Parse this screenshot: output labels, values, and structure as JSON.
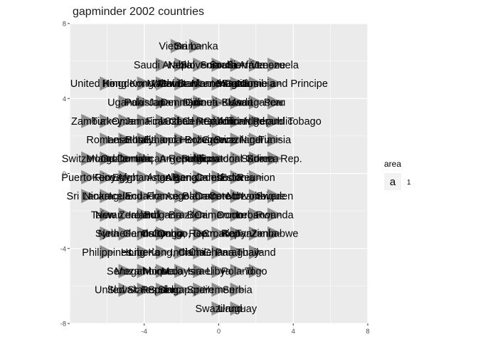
{
  "chart_data": {
    "type": "scatter",
    "title": "gapminder 2002 countries",
    "xlabel": "",
    "ylabel": "",
    "xlim": [
      -8,
      8
    ],
    "ylim": [
      -8,
      8
    ],
    "x_ticks": [
      -4,
      0,
      4,
      8
    ],
    "y_ticks": [
      8,
      4,
      0,
      -4,
      -8
    ],
    "grid": true,
    "marker": "triangle-right",
    "marker_color": "#7f7f7f",
    "panel_color": "#ebebeb",
    "legend": {
      "title": "area",
      "key_text": "a",
      "labels": [
        "1"
      ],
      "position": "right"
    },
    "points": [
      {
        "x": -2.2,
        "y": 6.8,
        "label": "Vietnam"
      },
      {
        "x": -1.2,
        "y": 6.8,
        "label": "Sri Lanka"
      },
      {
        "x": -3.0,
        "y": 5.8,
        "label": "Saudi Arabia"
      },
      {
        "x": -2.0,
        "y": 5.8,
        "label": "Nepal"
      },
      {
        "x": -1.0,
        "y": 5.8,
        "label": "Slovenia"
      },
      {
        "x": 0.0,
        "y": 5.8,
        "label": "Somalia"
      },
      {
        "x": 1.0,
        "y": 5.8,
        "label": "South Africa"
      },
      {
        "x": 2.0,
        "y": 5.8,
        "label": "Sierra Leone"
      },
      {
        "x": 3.0,
        "y": 5.8,
        "label": "Venezuela"
      },
      {
        "x": -6.0,
        "y": 4.8,
        "label": "United Kingdom"
      },
      {
        "x": -4.0,
        "y": 4.8,
        "label": "Hong Kong, China"
      },
      {
        "x": -3.0,
        "y": 4.8,
        "label": "Malawi"
      },
      {
        "x": -2.0,
        "y": 4.8,
        "label": "Mauritania"
      },
      {
        "x": -1.0,
        "y": 4.8,
        "label": "West Bank and Gaza"
      },
      {
        "x": 0.0,
        "y": 4.8,
        "label": "Montenegro"
      },
      {
        "x": 1.0,
        "y": 4.8,
        "label": "Mauritius"
      },
      {
        "x": 2.0,
        "y": 4.8,
        "label": "Namibia"
      },
      {
        "x": 3.0,
        "y": 4.8,
        "label": "Sao Tome and Principe"
      },
      {
        "x": -5.0,
        "y": 3.8,
        "label": "Uganda"
      },
      {
        "x": -4.0,
        "y": 3.8,
        "label": "Pakistan"
      },
      {
        "x": -3.0,
        "y": 3.8,
        "label": "Japan"
      },
      {
        "x": -2.0,
        "y": 3.8,
        "label": "Denmark"
      },
      {
        "x": -1.0,
        "y": 3.8,
        "label": "Djibouti"
      },
      {
        "x": 0.0,
        "y": 3.8,
        "label": "Guinea-Bissau"
      },
      {
        "x": 1.0,
        "y": 3.8,
        "label": "Kuwait"
      },
      {
        "x": 2.0,
        "y": 3.8,
        "label": "Madagascar"
      },
      {
        "x": 3.0,
        "y": 3.8,
        "label": "Peru"
      },
      {
        "x": -7.0,
        "y": 2.8,
        "label": "Zambia"
      },
      {
        "x": -6.0,
        "y": 2.8,
        "label": "Turkey"
      },
      {
        "x": -5.0,
        "y": 2.8,
        "label": "Oman"
      },
      {
        "x": -4.0,
        "y": 2.8,
        "label": "Jamaica"
      },
      {
        "x": -3.0,
        "y": 2.8,
        "label": "Finland"
      },
      {
        "x": -2.0,
        "y": 2.8,
        "label": "Chad"
      },
      {
        "x": -1.0,
        "y": 2.8,
        "label": "Czech Republic"
      },
      {
        "x": 0.0,
        "y": 2.8,
        "label": "Gabon"
      },
      {
        "x": 1.0,
        "y": 2.8,
        "label": "Central African Republic"
      },
      {
        "x": 2.0,
        "y": 2.8,
        "label": "Niger"
      },
      {
        "x": 3.0,
        "y": 2.8,
        "label": "Trinidad and Tobago"
      },
      {
        "x": -6.0,
        "y": 1.8,
        "label": "Romania"
      },
      {
        "x": -5.0,
        "y": 1.8,
        "label": "Lesotho"
      },
      {
        "x": -4.0,
        "y": 1.8,
        "label": "Italy"
      },
      {
        "x": -3.0,
        "y": 1.8,
        "label": "Ethiopia"
      },
      {
        "x": -2.0,
        "y": 1.8,
        "label": "Bosnia and Herzegovina"
      },
      {
        "x": -1.0,
        "y": 1.8,
        "label": "Bolivia"
      },
      {
        "x": 0.0,
        "y": 1.8,
        "label": "Greece"
      },
      {
        "x": 1.0,
        "y": 1.8,
        "label": "Swaziland"
      },
      {
        "x": 2.0,
        "y": 1.8,
        "label": "Nigeria"
      },
      {
        "x": 3.0,
        "y": 1.8,
        "label": "Tunisia"
      },
      {
        "x": -7.0,
        "y": 0.8,
        "label": "Switzerland"
      },
      {
        "x": -6.0,
        "y": 0.8,
        "label": "Mongolia"
      },
      {
        "x": -5.0,
        "y": 0.8,
        "label": "Guatemala"
      },
      {
        "x": -4.0,
        "y": 0.8,
        "label": "Iraq"
      },
      {
        "x": -3.0,
        "y": 0.8,
        "label": "Dominican Republic"
      },
      {
        "x": -2.0,
        "y": 0.8,
        "label": "Argentina"
      },
      {
        "x": -1.0,
        "y": 0.8,
        "label": "Belgium"
      },
      {
        "x": 0.0,
        "y": 0.8,
        "label": "Ecuador"
      },
      {
        "x": 1.0,
        "y": 0.8,
        "label": "Equatorial Guinea"
      },
      {
        "x": 2.0,
        "y": 0.8,
        "label": "Sudan"
      },
      {
        "x": 3.0,
        "y": 0.8,
        "label": "Korea, Rep."
      },
      {
        "x": -7.0,
        "y": -0.2,
        "label": "Puerto Rico"
      },
      {
        "x": -6.0,
        "y": -0.2,
        "label": "Kenya"
      },
      {
        "x": -5.0,
        "y": -0.2,
        "label": "Egypt"
      },
      {
        "x": -4.0,
        "y": -0.2,
        "label": "Afghanistan"
      },
      {
        "x": -3.0,
        "y": -0.2,
        "label": "Angola"
      },
      {
        "x": -2.0,
        "y": -0.2,
        "label": "Algeria"
      },
      {
        "x": -1.0,
        "y": -0.2,
        "label": "Bangladesh"
      },
      {
        "x": 0.0,
        "y": -0.2,
        "label": "Cambodia"
      },
      {
        "x": 1.0,
        "y": -0.2,
        "label": "Estonia"
      },
      {
        "x": 2.0,
        "y": -0.2,
        "label": "Reunion"
      },
      {
        "x": -7.0,
        "y": -1.2,
        "label": "Sri Lanka"
      },
      {
        "x": -6.0,
        "y": -1.2,
        "label": "Nicaragua"
      },
      {
        "x": -5.0,
        "y": -1.2,
        "label": "Iceland"
      },
      {
        "x": -4.0,
        "y": -1.2,
        "label": "Ecuador"
      },
      {
        "x": -3.0,
        "y": -1.2,
        "label": "France"
      },
      {
        "x": -2.0,
        "y": -1.2,
        "label": "Angola"
      },
      {
        "x": -1.0,
        "y": -1.2,
        "label": "Bahrain"
      },
      {
        "x": 0.0,
        "y": -1.2,
        "label": "Cameroon"
      },
      {
        "x": 1.0,
        "y": -1.2,
        "label": "Cote d'Ivoire"
      },
      {
        "x": 2.0,
        "y": -1.2,
        "label": "Mozambique"
      },
      {
        "x": 3.0,
        "y": -1.2,
        "label": "Sweden"
      },
      {
        "x": -6.0,
        "y": -2.2,
        "label": "Taiwan"
      },
      {
        "x": -5.0,
        "y": -2.2,
        "label": "New Zealand"
      },
      {
        "x": -4.0,
        "y": -2.2,
        "label": "Ireland"
      },
      {
        "x": -3.0,
        "y": -2.2,
        "label": "Bulgaria"
      },
      {
        "x": -2.0,
        "y": -2.2,
        "label": "Brazil"
      },
      {
        "x": -1.0,
        "y": -2.2,
        "label": "Benin"
      },
      {
        "x": 0.0,
        "y": -2.2,
        "label": "Cameroon"
      },
      {
        "x": 1.0,
        "y": -2.2,
        "label": "Comoros"
      },
      {
        "x": 2.0,
        "y": -2.2,
        "label": "Lebanon"
      },
      {
        "x": 3.0,
        "y": -2.2,
        "label": "Rwanda"
      },
      {
        "x": -6.0,
        "y": -3.2,
        "label": "Syria"
      },
      {
        "x": -5.0,
        "y": -3.2,
        "label": "Netherlands"
      },
      {
        "x": -4.0,
        "y": -3.2,
        "label": "Germany"
      },
      {
        "x": -3.0,
        "y": -3.2,
        "label": "Colombia"
      },
      {
        "x": -2.0,
        "y": -3.2,
        "label": "Congo, Rep."
      },
      {
        "x": -1.0,
        "y": -3.2,
        "label": "Congo, Dem. Rep."
      },
      {
        "x": 0.0,
        "y": -3.2,
        "label": "Croatia"
      },
      {
        "x": 1.0,
        "y": -3.2,
        "label": "Kenya"
      },
      {
        "x": 2.0,
        "y": -3.2,
        "label": "Tanzania"
      },
      {
        "x": 3.0,
        "y": -3.2,
        "label": "Zimbabwe"
      },
      {
        "x": -6.0,
        "y": -4.2,
        "label": "Philippines"
      },
      {
        "x": -4.0,
        "y": -4.2,
        "label": "Liberia"
      },
      {
        "x": -3.0,
        "y": -4.2,
        "label": "Hong Kong, China"
      },
      {
        "x": -2.0,
        "y": -4.2,
        "label": "India"
      },
      {
        "x": -1.0,
        "y": -4.2,
        "label": "Chile"
      },
      {
        "x": 0.0,
        "y": -4.2,
        "label": "Ghana"
      },
      {
        "x": 1.0,
        "y": -4.2,
        "label": "Paraguay"
      },
      {
        "x": 2.0,
        "y": -4.2,
        "label": "Thailand"
      },
      {
        "x": -5.0,
        "y": -5.2,
        "label": "Senegal"
      },
      {
        "x": -4.0,
        "y": -5.2,
        "label": "Mozambique"
      },
      {
        "x": -3.0,
        "y": -5.2,
        "label": "Morocco"
      },
      {
        "x": -2.0,
        "y": -5.2,
        "label": "Malaysia"
      },
      {
        "x": -1.0,
        "y": -5.2,
        "label": "Israel"
      },
      {
        "x": 0.0,
        "y": -5.2,
        "label": "Libya"
      },
      {
        "x": 1.0,
        "y": -5.2,
        "label": "Poland"
      },
      {
        "x": 2.0,
        "y": -5.2,
        "label": "Togo"
      },
      {
        "x": -5.0,
        "y": -6.2,
        "label": "United States"
      },
      {
        "x": -4.0,
        "y": -6.2,
        "label": "Slovak Republic"
      },
      {
        "x": -3.0,
        "y": -6.2,
        "label": "Sudan"
      },
      {
        "x": -2.0,
        "y": -6.2,
        "label": "Singapore"
      },
      {
        "x": -1.0,
        "y": -6.2,
        "label": "Spain"
      },
      {
        "x": 0.0,
        "y": -6.2,
        "label": "Yemen"
      },
      {
        "x": 1.0,
        "y": -6.2,
        "label": "Serbia"
      },
      {
        "x": 0.0,
        "y": -7.2,
        "label": "Swaziland"
      },
      {
        "x": 1.0,
        "y": -7.2,
        "label": "Uruguay"
      }
    ]
  }
}
